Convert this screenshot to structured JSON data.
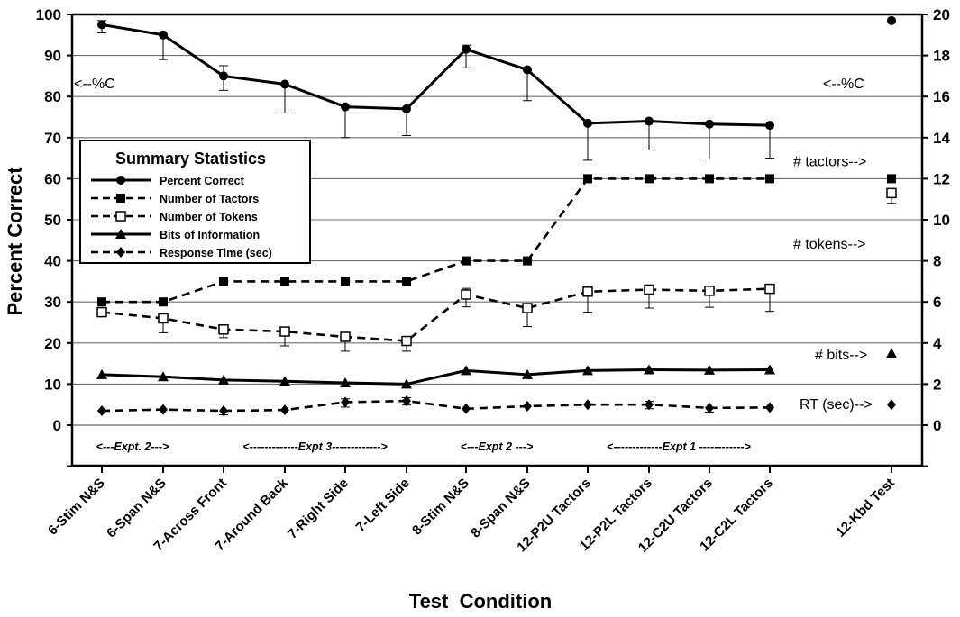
{
  "chart_data": {
    "type": "line",
    "xlabel": "Test  Condition",
    "ylabel": "Percent Correct",
    "ylim": [
      -10,
      100
    ],
    "y_ticks": [
      0,
      10,
      20,
      30,
      40,
      50,
      60,
      70,
      80,
      90,
      100
    ],
    "y2lim": [
      -2,
      20
    ],
    "y2_ticks": [
      0,
      2,
      4,
      6,
      8,
      10,
      12,
      14,
      16,
      18,
      20
    ],
    "grid": true,
    "categories": [
      "6-Stim N&S",
      "6-Span N&S",
      "7-Across Front",
      "7-Around Back",
      "7-Right Side",
      "7-Left Side",
      "8-Stim N&S",
      "8-Span N&S",
      "12-P2U Tactors",
      "12-P2L Tactors",
      "12-C2U Tactors",
      "12-C2L Tactors",
      "12-Kbd Test"
    ],
    "legend": {
      "title": "Summary Statistics",
      "position": "left",
      "entries": [
        "Percent Correct",
        "Number of Tactors",
        "Number of Tokens",
        "Bits of Information",
        "Response Time (sec)"
      ]
    },
    "series": [
      {
        "name": "Percent Correct",
        "axis": "left",
        "line": "solid",
        "marker": "circle",
        "values": [
          97.5,
          95,
          85,
          83,
          77.5,
          77,
          91.5,
          86.5,
          73.5,
          74,
          73.3,
          73,
          98.5
        ],
        "error_low": [
          2,
          6,
          3.5,
          7,
          7.5,
          6.5,
          4.5,
          7.5,
          9,
          7,
          8.5,
          8,
          null
        ],
        "error_high": [
          1,
          0,
          2.5,
          0,
          0,
          0,
          1,
          0,
          0,
          0,
          0,
          0,
          null
        ]
      },
      {
        "name": "Number of Tactors",
        "axis": "left",
        "line": "dashed",
        "marker": "square-filled",
        "values": [
          30,
          30,
          35,
          35,
          35,
          35,
          40,
          40,
          60,
          60,
          60,
          60,
          60
        ]
      },
      {
        "name": "Number of Tokens",
        "axis": "left",
        "line": "dashed",
        "marker": "square-open",
        "values": [
          27.5,
          26,
          23.3,
          22.8,
          21.5,
          20.5,
          31.8,
          28.5,
          32.5,
          33,
          32.7,
          33.2,
          56.5
        ],
        "error_low": [
          1,
          3.5,
          2,
          3.5,
          3.5,
          2.5,
          3,
          4.5,
          5,
          4.5,
          4,
          5.5,
          2.5
        ],
        "error_high": [
          1,
          0,
          0,
          0,
          0,
          0,
          1.5,
          0,
          0,
          0,
          0,
          0,
          0
        ]
      },
      {
        "name": "Bits of Information",
        "axis": "left",
        "line": "solid",
        "marker": "triangle",
        "values": [
          12.3,
          11.8,
          11,
          10.7,
          10.3,
          10,
          13.3,
          12.3,
          13.3,
          13.5,
          13.4,
          13.5,
          17.5
        ]
      },
      {
        "name": "Response Time (sec)",
        "axis": "left",
        "line": "dashed",
        "marker": "diamond",
        "values": [
          3.5,
          3.8,
          3.5,
          3.7,
          5.6,
          5.9,
          4,
          4.6,
          5,
          5,
          4.2,
          4.3,
          5
        ],
        "error_low": [
          0,
          0,
          1,
          0,
          1.2,
          1,
          0,
          0,
          0,
          1,
          1,
          0,
          0
        ],
        "error_high": [
          0,
          0,
          0,
          0,
          0.8,
          0.8,
          0,
          0,
          0,
          0.8,
          0,
          0,
          0
        ]
      }
    ],
    "annotations": {
      "pc": "<--%C",
      "pc_left": "<--%C",
      "tactors": "# tactors-->",
      "tokens": "# tokens-->",
      "bits": "# bits-->",
      "rt": "RT (sec)-->"
    },
    "experiment_labels": [
      {
        "text": "<---Expt. 2--->",
        "from": 0,
        "to": 1
      },
      {
        "text": "<-------------Expt 3------------->",
        "from": 2,
        "to": 5
      },
      {
        "text": "<---Expt 2 --->",
        "from": 6,
        "to": 7
      },
      {
        "text": "<-------------Expt 1 ------------>",
        "from": 8,
        "to": 11
      }
    ]
  }
}
